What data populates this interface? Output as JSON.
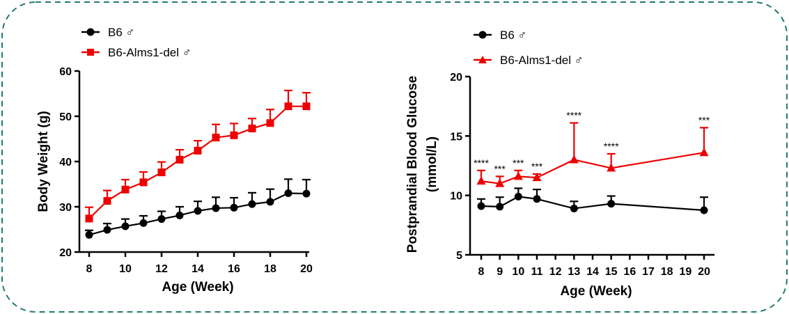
{
  "chart_data": [
    {
      "type": "line",
      "title": "",
      "xlabel": "Age (Week)",
      "ylabel": "Body Weight (g)",
      "x_ticks": [
        "8",
        "10",
        "12",
        "14",
        "16",
        "18",
        "20"
      ],
      "y_ticks": [
        "20",
        "30",
        "40",
        "50",
        "60"
      ],
      "xlim": [
        8,
        20
      ],
      "ylim": [
        20,
        60
      ],
      "legend_position": "top-left",
      "series": [
        {
          "name": "B6 ♂",
          "color": "#000000",
          "marker": "circle",
          "x": [
            8,
            9,
            10,
            11,
            12,
            13,
            14,
            15,
            16,
            17,
            18,
            19,
            20
          ],
          "values": [
            23.8,
            24.9,
            25.7,
            26.4,
            27.3,
            28.1,
            29.1,
            29.7,
            29.8,
            30.6,
            31.1,
            33.0,
            32.9
          ],
          "error": [
            1.0,
            1.4,
            1.6,
            1.6,
            1.7,
            1.9,
            2.1,
            2.4,
            2.2,
            2.5,
            2.8,
            3.1,
            3.1
          ]
        },
        {
          "name": "B6-Alms1-del ♂",
          "color": "#ee0000",
          "marker": "square",
          "x": [
            8,
            9,
            10,
            11,
            12,
            13,
            14,
            15,
            16,
            17,
            18,
            19,
            20
          ],
          "values": [
            27.4,
            31.3,
            33.8,
            35.4,
            37.6,
            40.4,
            42.4,
            45.3,
            45.8,
            47.3,
            48.5,
            52.2,
            52.2
          ],
          "error": [
            2.5,
            2.3,
            2.2,
            2.3,
            2.3,
            2.2,
            2.2,
            2.9,
            2.6,
            2.2,
            3.0,
            3.5,
            3.0
          ]
        }
      ]
    },
    {
      "type": "line",
      "title": "",
      "xlabel": "Age (Week)",
      "ylabel_line1": "Postprandial Blood Glucose",
      "ylabel_line2": "(mmol/L)",
      "x_ticks": [
        "8",
        "9",
        "10",
        "11",
        "12",
        "13",
        "14",
        "15",
        "16",
        "17",
        "18",
        "19",
        "20"
      ],
      "y_ticks": [
        "5",
        "10",
        "15",
        "20"
      ],
      "xlim": [
        8,
        20
      ],
      "ylim": [
        5,
        20
      ],
      "legend_position": "top-left",
      "series": [
        {
          "name": "B6 ♂",
          "color": "#000000",
          "marker": "circle",
          "x": [
            8,
            9,
            10,
            11,
            13,
            15,
            20
          ],
          "values": [
            9.1,
            9.05,
            9.9,
            9.7,
            8.9,
            9.3,
            8.75
          ],
          "error": [
            0.6,
            0.8,
            0.7,
            0.8,
            0.6,
            0.65,
            1.1
          ]
        },
        {
          "name": "B6-Alms1-del ♂",
          "color": "#ee0000",
          "marker": "triangle",
          "x": [
            8,
            9,
            10,
            11,
            13,
            15,
            20
          ],
          "values": [
            11.2,
            11.0,
            11.6,
            11.5,
            13.0,
            12.3,
            13.6
          ],
          "error": [
            0.9,
            0.6,
            0.5,
            0.3,
            3.1,
            1.2,
            2.1
          ]
        }
      ],
      "annotations": [
        {
          "x": 8,
          "text": "****",
          "anchor": 12.1
        },
        {
          "x": 9,
          "text": "***",
          "anchor": 11.6
        },
        {
          "x": 10,
          "text": "***",
          "anchor": 12.1
        },
        {
          "x": 11,
          "text": "***",
          "anchor": 11.8
        },
        {
          "x": 13,
          "text": "****",
          "anchor": 16.1
        },
        {
          "x": 15,
          "text": "****",
          "anchor": 13.5
        },
        {
          "x": 20,
          "text": "***",
          "anchor": 15.7
        }
      ]
    }
  ]
}
